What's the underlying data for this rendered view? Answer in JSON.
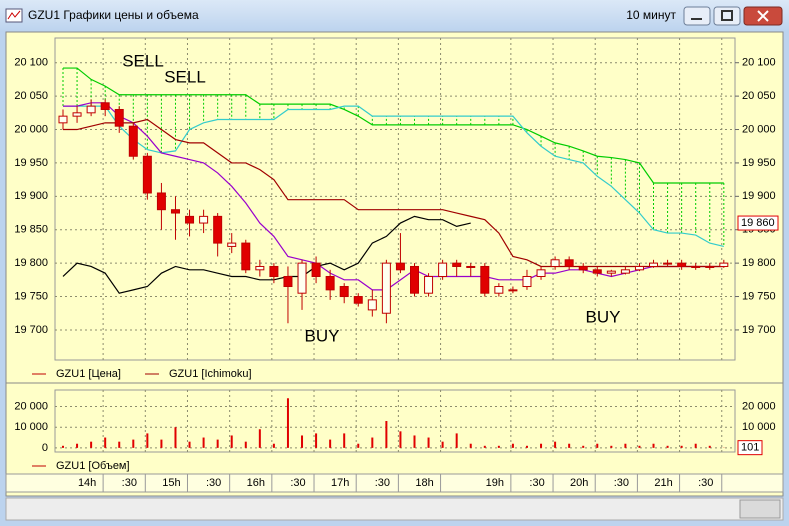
{
  "window": {
    "title": "GZU1 Графики цены и объема",
    "interval": "10 минут"
  },
  "chart_data": {
    "type": "candlestick",
    "categories": [
      null,
      null,
      "14h",
      null,
      null,
      ":30",
      null,
      null,
      "15h",
      null,
      null,
      ":30",
      null,
      null,
      "16h",
      null,
      null,
      ":30",
      null,
      null,
      "17h",
      null,
      null,
      ":30",
      null,
      null,
      "18h",
      null,
      null,
      null,
      null,
      "19h",
      null,
      null,
      ":30",
      null,
      null,
      "20h",
      null,
      null,
      ":30",
      null,
      null,
      "21h",
      null,
      null,
      ":30",
      null
    ],
    "open": [
      20010,
      20020,
      20025,
      20040,
      20030,
      20005,
      19960,
      19905,
      19880,
      19870,
      19860,
      19870,
      19825,
      19830,
      19790,
      19795,
      19780,
      19755,
      19800,
      19780,
      19765,
      19750,
      19730,
      19725,
      19800,
      19795,
      19755,
      19780,
      19800,
      19795,
      19795,
      19755,
      19760,
      19765,
      19780,
      19795,
      19805,
      19795,
      19790,
      19785,
      19785,
      19790,
      19795,
      19800,
      19800,
      19795,
      19795,
      19795
    ],
    "high": [
      20030,
      20035,
      20045,
      20045,
      20035,
      20010,
      19965,
      19920,
      19900,
      19880,
      19880,
      19875,
      19845,
      19835,
      19805,
      19800,
      19795,
      19805,
      19810,
      19790,
      19770,
      19755,
      19760,
      19805,
      19845,
      19800,
      19785,
      19805,
      19805,
      19800,
      19800,
      19770,
      19765,
      19790,
      19795,
      19810,
      19810,
      19800,
      19795,
      19790,
      19795,
      19800,
      19805,
      19805,
      19805,
      19800,
      19800,
      19805
    ],
    "low": [
      20000,
      20010,
      20020,
      20020,
      19995,
      19955,
      19895,
      19850,
      19835,
      19840,
      19845,
      19810,
      19815,
      19785,
      19780,
      19770,
      19710,
      19730,
      19770,
      19745,
      19740,
      19735,
      19720,
      19710,
      19785,
      19750,
      19750,
      19775,
      19780,
      19780,
      19750,
      19750,
      19755,
      19760,
      19775,
      19790,
      19790,
      19785,
      19780,
      19780,
      19783,
      19788,
      19793,
      19795,
      19790,
      19790,
      19790,
      19793
    ],
    "close": [
      20020,
      20025,
      20035,
      20030,
      20005,
      19960,
      19905,
      19880,
      19875,
      19860,
      19870,
      19830,
      19830,
      19790,
      19795,
      19780,
      19765,
      19800,
      19780,
      19760,
      19750,
      19740,
      19745,
      19800,
      19790,
      19755,
      19780,
      19800,
      19795,
      19795,
      19755,
      19765,
      19760,
      19780,
      19790,
      19805,
      19795,
      19790,
      19785,
      19788,
      19790,
      19795,
      19800,
      19800,
      19795,
      19795,
      19795,
      19800
    ],
    "up_color": "#fffff0",
    "down_color": "#e00000",
    "edge_color": "#c00000",
    "series": [
      {
        "color": "#00cc00",
        "values": [
          20092,
          20092,
          20075,
          20065,
          20052,
          20052,
          20052,
          20052,
          20052,
          20052,
          20052,
          20052,
          20052,
          20052,
          20038,
          20038,
          20038,
          20038,
          20038,
          20038,
          20030,
          20020,
          20007,
          20007,
          20007,
          20007,
          20007,
          20007,
          20007,
          20007,
          20007,
          20007,
          20007,
          20000,
          19990,
          19980,
          19975,
          19968,
          19960,
          19958,
          19955,
          19950,
          19920,
          19920,
          19920,
          19920,
          19920,
          19920
        ]
      },
      {
        "color": "#33cccc",
        "values": [
          20035,
          20035,
          20035,
          20035,
          20005,
          19985,
          19970,
          19965,
          19968,
          20000,
          20010,
          20015,
          20015,
          20015,
          20015,
          20015,
          20030,
          20030,
          20030,
          20030,
          20035,
          20035,
          20020,
          20020,
          20020,
          20020,
          20020,
          20020,
          20020,
          20020,
          20020,
          20020,
          20020,
          19995,
          19975,
          19960,
          19955,
          19950,
          19930,
          19915,
          19895,
          19875,
          19850,
          19845,
          19845,
          19842,
          19830,
          19825
        ]
      },
      {
        "color": "#9900cc",
        "values": [
          20035,
          20035,
          20040,
          20040,
          20020,
          20010,
          19990,
          19965,
          19960,
          19955,
          19950,
          19935,
          19915,
          19890,
          19860,
          19840,
          19810,
          19805,
          19800,
          19785,
          19775,
          19775,
          19760,
          19760,
          19775,
          19790,
          19780,
          19780,
          19780,
          19780,
          19780,
          19775,
          19775,
          19775,
          19785,
          19785,
          19790,
          19790,
          19785,
          19780,
          19785,
          19790,
          19795,
          19795,
          19795,
          19795,
          19795,
          19795
        ]
      },
      {
        "color": "#a00000",
        "values": [
          20000,
          20000,
          20005,
          20010,
          20010,
          20010,
          20015,
          20000,
          19985,
          19980,
          19980,
          19965,
          19950,
          19950,
          19940,
          19925,
          19895,
          19895,
          19895,
          19895,
          19895,
          19880,
          19880,
          19880,
          19880,
          19880,
          19880,
          19880,
          19875,
          19870,
          19865,
          19845,
          19810,
          19805,
          19795,
          19795,
          19795,
          19795,
          19795,
          19795,
          19795,
          19795,
          19795,
          19795,
          19795,
          19795,
          19795,
          19795
        ]
      },
      {
        "color": "#000000",
        "values": [
          19780,
          19800,
          19795,
          19785,
          19755,
          19760,
          19765,
          19785,
          19795,
          19790,
          19790,
          19785,
          19780,
          19780,
          19775,
          19775,
          19780,
          19780,
          19795,
          19800,
          19790,
          19800,
          19830,
          19840,
          19860,
          19870,
          19865,
          19865,
          19855,
          19860,
          null,
          null,
          null,
          null,
          null,
          null,
          null,
          null,
          null,
          null,
          null,
          null,
          null,
          null,
          null,
          null,
          null,
          null
        ]
      }
    ],
    "cloud_color": "#00cc00",
    "ylim": [
      19655,
      20137
    ],
    "yticks": [
      {
        "value": 20100,
        "label": "20 100"
      },
      {
        "value": 20050,
        "label": "20 050"
      },
      {
        "value": 20000,
        "label": "20 000"
      },
      {
        "value": 19950,
        "label": "19 950"
      },
      {
        "value": 19900,
        "label": "19 900"
      },
      {
        "value": 19850,
        "label": "19 850"
      },
      {
        "value": 19800,
        "label": "19 800"
      },
      {
        "value": 19750,
        "label": "19 750"
      },
      {
        "value": 19700,
        "label": "19 700"
      }
    ],
    "price_marker": {
      "value": 19860,
      "label": "19 860"
    },
    "annotations": [
      {
        "text": "SELL",
        "color": "#e00000"
      },
      {
        "text": "SELL",
        "color": "#e00000"
      },
      {
        "text": "BUY",
        "color": "#33dd33"
      },
      {
        "text": "BUY",
        "color": "#33dd33"
      }
    ],
    "legend": [
      {
        "label": "GZU1 [Цена]",
        "color": "#c00000"
      },
      {
        "label": "GZU1 [Ichimoku]",
        "color": "#a00000"
      }
    ],
    "volume": {
      "values": [
        1000,
        2000,
        3000,
        5000,
        3000,
        4000,
        7000,
        4000,
        10000,
        3000,
        5000,
        4000,
        6000,
        3000,
        9000,
        2000,
        24000,
        6000,
        7000,
        4000,
        7000,
        2000,
        5000,
        13000,
        8000,
        6000,
        5000,
        3000,
        7000,
        2000,
        1000,
        1000,
        2000,
        1000,
        2000,
        3000,
        2000,
        1000,
        2000,
        1000,
        2000,
        1000,
        2000,
        1000,
        1000,
        2000,
        1000,
        101
      ],
      "color": "#e00000",
      "ylim": [
        -2000,
        28000
      ],
      "yticks": [
        0,
        {
          "value": 10000,
          "label": "10 000"
        },
        {
          "value": 20000,
          "label": "20 000"
        }
      ],
      "marker": 101,
      "legend": {
        "label": "GZU1 [Объем]",
        "color": "#c00000"
      }
    },
    "grid": true
  }
}
